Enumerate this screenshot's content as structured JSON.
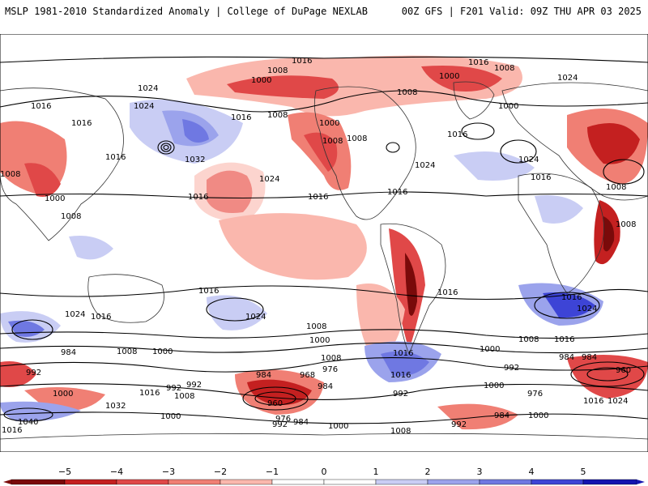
{
  "header": {
    "title_left": "MSLP 1981-2010 Standardized Anomaly | College of DuPage NEXLAB",
    "title_right": "00Z GFS | F201 Valid: 09Z THU APR 03 2025"
  },
  "colors": {
    "neg5": "#7a0a0a",
    "neg4": "#c42020",
    "neg3": "#e04848",
    "neg2": "#f07f74",
    "neg1": "#fab7ad",
    "zero": "#ffffff",
    "pos1": "#c9cdf4",
    "pos2": "#9ba3ec",
    "pos3": "#6f78e2",
    "pos4": "#3d44d6",
    "pos5": "#1414b0",
    "contour": "#000000",
    "border": "#333333"
  },
  "colorbar": {
    "ticks": [
      "−5",
      "−4",
      "−3",
      "−2",
      "−1",
      "0",
      "1",
      "2",
      "3",
      "4",
      "5"
    ]
  },
  "isobars": [
    {
      "id": "l1",
      "text": "1016"
    },
    {
      "id": "l2",
      "text": "1008"
    },
    {
      "id": "l3",
      "text": "1016"
    },
    {
      "id": "l4",
      "text": "1008"
    },
    {
      "id": "l5",
      "text": "1024"
    },
    {
      "id": "l6",
      "text": "1000"
    },
    {
      "id": "l7",
      "text": "1000"
    },
    {
      "id": "l8",
      "text": "1024"
    },
    {
      "id": "l9",
      "text": "1016"
    },
    {
      "id": "l10",
      "text": "1024"
    },
    {
      "id": "l11",
      "text": "1008"
    },
    {
      "id": "l12",
      "text": "1016"
    },
    {
      "id": "l13",
      "text": "1000"
    },
    {
      "id": "l14",
      "text": "1008"
    },
    {
      "id": "l15",
      "text": "1016"
    },
    {
      "id": "l16",
      "text": "1000"
    },
    {
      "id": "l17",
      "text": "1016"
    },
    {
      "id": "l18",
      "text": "1016"
    },
    {
      "id": "l19",
      "text": "1008"
    },
    {
      "id": "l20",
      "text": "1024"
    },
    {
      "id": "l21",
      "text": "1032"
    },
    {
      "id": "l22",
      "text": "1008"
    },
    {
      "id": "l23",
      "text": "1024"
    },
    {
      "id": "l24",
      "text": "1024"
    },
    {
      "id": "l25",
      "text": "1016"
    },
    {
      "id": "l26",
      "text": "1008"
    },
    {
      "id": "l27",
      "text": "1016"
    },
    {
      "id": "l28",
      "text": "1016"
    },
    {
      "id": "l29",
      "text": "1000"
    },
    {
      "id": "l30",
      "text": "1008"
    },
    {
      "id": "l31",
      "text": "1008"
    },
    {
      "id": "l32",
      "text": "1016"
    },
    {
      "id": "l33",
      "text": "1008"
    },
    {
      "id": "l34",
      "text": "1016"
    },
    {
      "id": "l35",
      "text": "1024"
    },
    {
      "id": "l36",
      "text": "1016"
    },
    {
      "id": "l37",
      "text": "1024"
    },
    {
      "id": "l38",
      "text": "1016"
    },
    {
      "id": "l39",
      "text": "1024"
    },
    {
      "id": "l40",
      "text": "1016"
    },
    {
      "id": "l41",
      "text": "1008"
    },
    {
      "id": "l42",
      "text": "1000"
    },
    {
      "id": "l43",
      "text": "1008"
    },
    {
      "id": "l44",
      "text": "1016"
    },
    {
      "id": "l45",
      "text": "1000"
    },
    {
      "id": "l46",
      "text": "1008"
    },
    {
      "id": "l47",
      "text": "1016"
    },
    {
      "id": "l48",
      "text": "1000"
    },
    {
      "id": "l49",
      "text": "1008"
    },
    {
      "id": "l50",
      "text": "1016"
    },
    {
      "id": "l51",
      "text": "984"
    },
    {
      "id": "l52",
      "text": "992"
    },
    {
      "id": "l53",
      "text": "984"
    },
    {
      "id": "l54",
      "text": "992"
    },
    {
      "id": "l55",
      "text": "984"
    },
    {
      "id": "l56",
      "text": "976"
    },
    {
      "id": "l57",
      "text": "968"
    },
    {
      "id": "l58",
      "text": "984"
    },
    {
      "id": "l59",
      "text": "992"
    },
    {
      "id": "l60",
      "text": "992"
    },
    {
      "id": "l61",
      "text": "1000"
    },
    {
      "id": "l62",
      "text": "984"
    },
    {
      "id": "l63",
      "text": "960"
    },
    {
      "id": "l64",
      "text": "1000"
    },
    {
      "id": "l65",
      "text": "1032"
    },
    {
      "id": "l66",
      "text": "1016"
    },
    {
      "id": "l67",
      "text": "992"
    },
    {
      "id": "l68",
      "text": "1008"
    },
    {
      "id": "l69",
      "text": "960"
    },
    {
      "id": "l70",
      "text": "976"
    },
    {
      "id": "l71",
      "text": "1016"
    },
    {
      "id": "l72",
      "text": "1024"
    },
    {
      "id": "l73",
      "text": "1040"
    },
    {
      "id": "l74",
      "text": "1016"
    },
    {
      "id": "l75",
      "text": "1000"
    },
    {
      "id": "l76",
      "text": "976"
    },
    {
      "id": "l77",
      "text": "992"
    },
    {
      "id": "l78",
      "text": "984"
    },
    {
      "id": "l79",
      "text": "1000"
    },
    {
      "id": "l80",
      "text": "1008"
    },
    {
      "id": "l81",
      "text": "992"
    },
    {
      "id": "l82",
      "text": "984"
    },
    {
      "id": "l83",
      "text": "1000"
    }
  ]
}
